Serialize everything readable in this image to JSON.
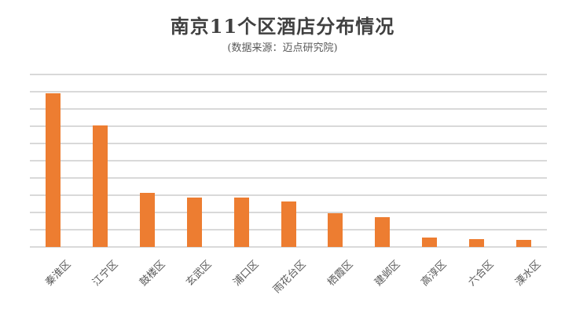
{
  "header": {
    "title": "南京11个区酒店分布情况",
    "subtitle": "(数据来源：迈点研究院)"
  },
  "chart_data": {
    "type": "bar",
    "title": "南京11个区酒店分布情况",
    "subtitle": "(数据来源：迈点研究院)",
    "categories": [
      "秦淮区",
      "江宁区",
      "鼓楼区",
      "玄武区",
      "浦口区",
      "雨花台区",
      "栖霞区",
      "建邺区",
      "高淳区",
      "六合区",
      "溧水区"
    ],
    "values": [
      8.9,
      7.05,
      3.15,
      2.85,
      2.85,
      2.65,
      1.95,
      1.75,
      0.55,
      0.45,
      0.4
    ],
    "xlabel": "",
    "ylabel": "",
    "ylim": [
      0,
      10
    ],
    "gridline_step": 1,
    "y_axis_labeled": false,
    "grid": "horizontal",
    "legend": "none",
    "bar_color": "#ED7D31",
    "gridline_color": "#D9D9D9",
    "title_color": "#404040",
    "label_color": "#595959",
    "background": "#FFFFFF"
  }
}
